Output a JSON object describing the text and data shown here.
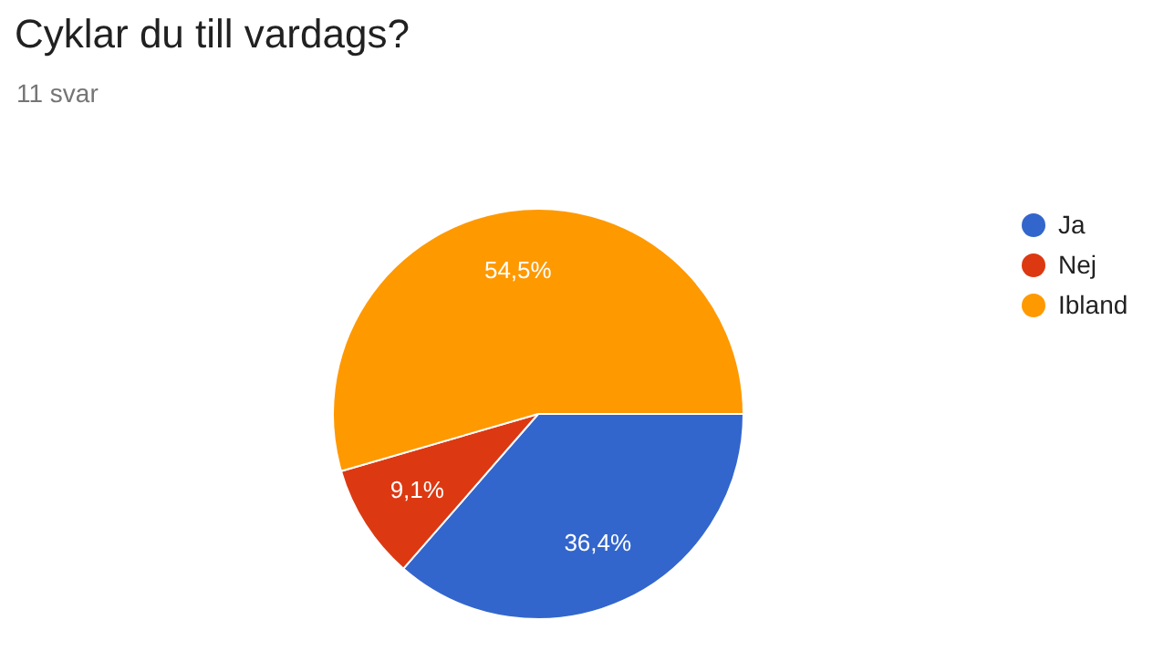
{
  "chart_data": {
    "type": "pie",
    "title": "Cyklar du till vardags?",
    "subtitle": "11 svar",
    "categories": [
      "Ja",
      "Nej",
      "Ibland"
    ],
    "values": [
      36.4,
      9.1,
      54.5
    ],
    "value_labels": [
      "36,4%",
      "9,1%",
      "54,5%"
    ],
    "colors": [
      "#3366cc",
      "#dc3912",
      "#ff9900"
    ],
    "legend": "right"
  }
}
